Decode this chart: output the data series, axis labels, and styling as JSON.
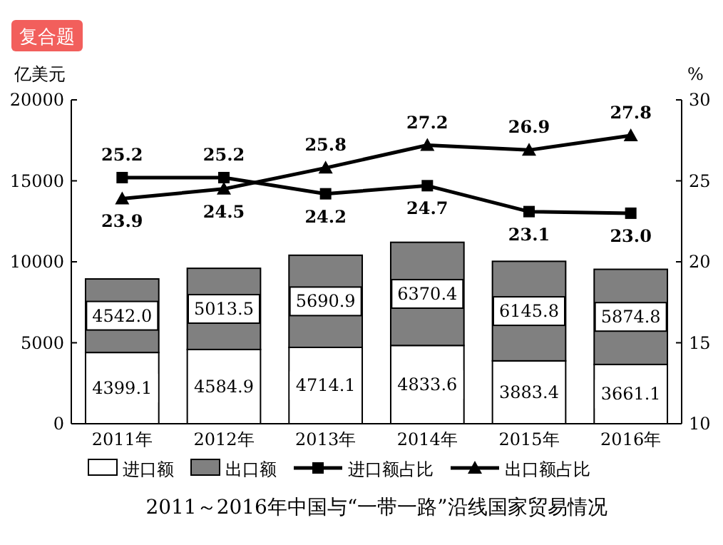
{
  "chart_data": {
    "type": "bar",
    "stacked": true,
    "title": "2011～2016年中国与“一带一路”沿线国家贸易情况",
    "ylabel": "亿美元",
    "y2label": "%",
    "annotations": [
      "复合题"
    ],
    "categories": [
      "2011年",
      "2012年",
      "2013年",
      "2014年",
      "2015年",
      "2016年"
    ],
    "ylim": [
      0,
      20000
    ],
    "yticks": [
      0,
      5000,
      10000,
      15000,
      20000
    ],
    "y2lim": [
      10,
      30
    ],
    "y2ticks": [
      10,
      15,
      20,
      25,
      30
    ],
    "legend": "bottom",
    "grid": false,
    "data_labels": true,
    "series": [
      {
        "name": "进口额",
        "color": "#ffffff",
        "values": [
          4399.1,
          4584.9,
          4714.1,
          4833.6,
          3883.4,
          3661.1
        ],
        "value_labels": [
          "4399.1",
          "4584.9",
          "4714.1",
          "4833.6",
          "3883.4",
          "3661.1"
        ]
      },
      {
        "name": "出口额",
        "color": "#808080",
        "values": [
          4542.0,
          5013.5,
          5690.9,
          6370.4,
          6145.8,
          5874.8
        ],
        "value_labels": [
          "4542.0",
          "5013.5",
          "5690.9",
          "6370.4",
          "6145.8",
          "5874.8"
        ]
      },
      {
        "name": "进口额占比",
        "type": "line",
        "axis": "y2",
        "marker": "square",
        "color": "#000000",
        "values": [
          25.2,
          25.2,
          24.2,
          24.7,
          23.1,
          23.0
        ],
        "value_labels": [
          "25.2",
          "25.2",
          "24.2",
          "24.7",
          "23.1",
          "23.0"
        ]
      },
      {
        "name": "出口额占比",
        "type": "line",
        "axis": "y2",
        "marker": "triangle",
        "color": "#000000",
        "values": [
          23.9,
          24.5,
          25.8,
          27.2,
          26.9,
          27.8
        ],
        "value_labels": [
          "23.9",
          "24.5",
          "25.8",
          "27.2",
          "26.9",
          "27.8"
        ]
      }
    ]
  }
}
